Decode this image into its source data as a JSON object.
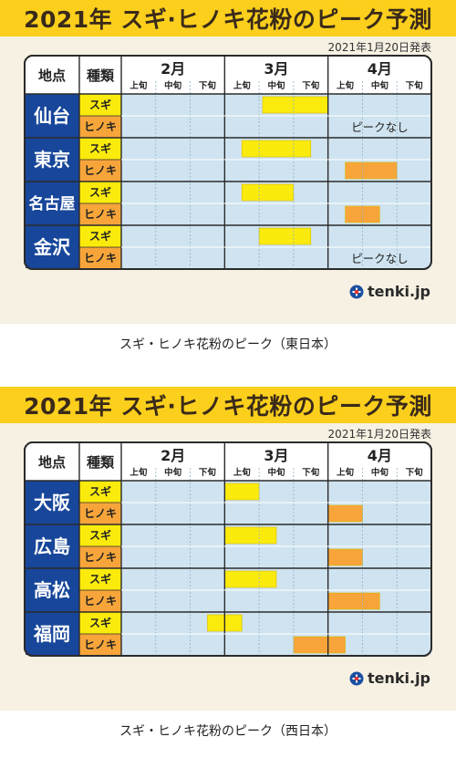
{
  "panels": [
    {
      "title": "2021年 スギ·ヒノキ花粉のピーク予測",
      "date_note": "2021年1月20日発表",
      "caption": "スギ・ヒノキ花粉のピーク（東日本）",
      "logo": "tenki.jp",
      "chart_data": {
        "type": "gantt",
        "header_location": "地点",
        "header_species": "種類",
        "months": [
          "2月",
          "3月",
          "4月"
        ],
        "periods": [
          "上旬",
          "中旬",
          "下旬"
        ],
        "colors": {
          "スギ": "#fbeb0c",
          "ヒノキ": "#f7a53a"
        },
        "unit": "period index 0–9 (2月上旬 = 0, 4月下旬 = 9)",
        "cities": [
          {
            "name": "仙台",
            "rows": [
              {
                "species": "スギ",
                "start": 4.1,
                "end": 6.0,
                "note": ""
              },
              {
                "species": "ヒノキ",
                "start": null,
                "end": null,
                "note": "ピークなし"
              }
            ]
          },
          {
            "name": "東京",
            "rows": [
              {
                "species": "スギ",
                "start": 3.5,
                "end": 5.5,
                "note": ""
              },
              {
                "species": "ヒノキ",
                "start": 6.5,
                "end": 8.0,
                "note": ""
              }
            ]
          },
          {
            "name": "名古屋",
            "rows": [
              {
                "species": "スギ",
                "start": 3.5,
                "end": 5.0,
                "note": ""
              },
              {
                "species": "ヒノキ",
                "start": 6.5,
                "end": 7.5,
                "note": ""
              }
            ]
          },
          {
            "name": "金沢",
            "rows": [
              {
                "species": "スギ",
                "start": 4.0,
                "end": 5.5,
                "note": ""
              },
              {
                "species": "ヒノキ",
                "start": null,
                "end": null,
                "note": "ピークなし"
              }
            ]
          }
        ]
      }
    },
    {
      "title": "2021年 スギ·ヒノキ花粉のピーク予測",
      "date_note": "2021年1月20日発表",
      "caption": "スギ・ヒノキ花粉のピーク（西日本）",
      "logo": "tenki.jp",
      "chart_data": {
        "type": "gantt",
        "header_location": "地点",
        "header_species": "種類",
        "months": [
          "2月",
          "3月",
          "4月"
        ],
        "periods": [
          "上旬",
          "中旬",
          "下旬"
        ],
        "colors": {
          "スギ": "#fbeb0c",
          "ヒノキ": "#f7a53a"
        },
        "unit": "period index 0–9 (2月上旬 = 0, 4月下旬 = 9)",
        "cities": [
          {
            "name": "大阪",
            "rows": [
              {
                "species": "スギ",
                "start": 3.0,
                "end": 4.0,
                "note": ""
              },
              {
                "species": "ヒノキ",
                "start": 6.0,
                "end": 7.0,
                "note": ""
              }
            ]
          },
          {
            "name": "広島",
            "rows": [
              {
                "species": "スギ",
                "start": 3.0,
                "end": 4.5,
                "note": ""
              },
              {
                "species": "ヒノキ",
                "start": 6.0,
                "end": 7.0,
                "note": ""
              }
            ]
          },
          {
            "name": "高松",
            "rows": [
              {
                "species": "スギ",
                "start": 3.0,
                "end": 4.5,
                "note": ""
              },
              {
                "species": "ヒノキ",
                "start": 6.0,
                "end": 7.5,
                "note": ""
              }
            ]
          },
          {
            "name": "福岡",
            "rows": [
              {
                "species": "スギ",
                "start": 2.5,
                "end": 3.5,
                "note": ""
              },
              {
                "species": "ヒノキ",
                "start": 5.0,
                "end": 6.5,
                "note": ""
              }
            ]
          }
        ]
      }
    }
  ]
}
